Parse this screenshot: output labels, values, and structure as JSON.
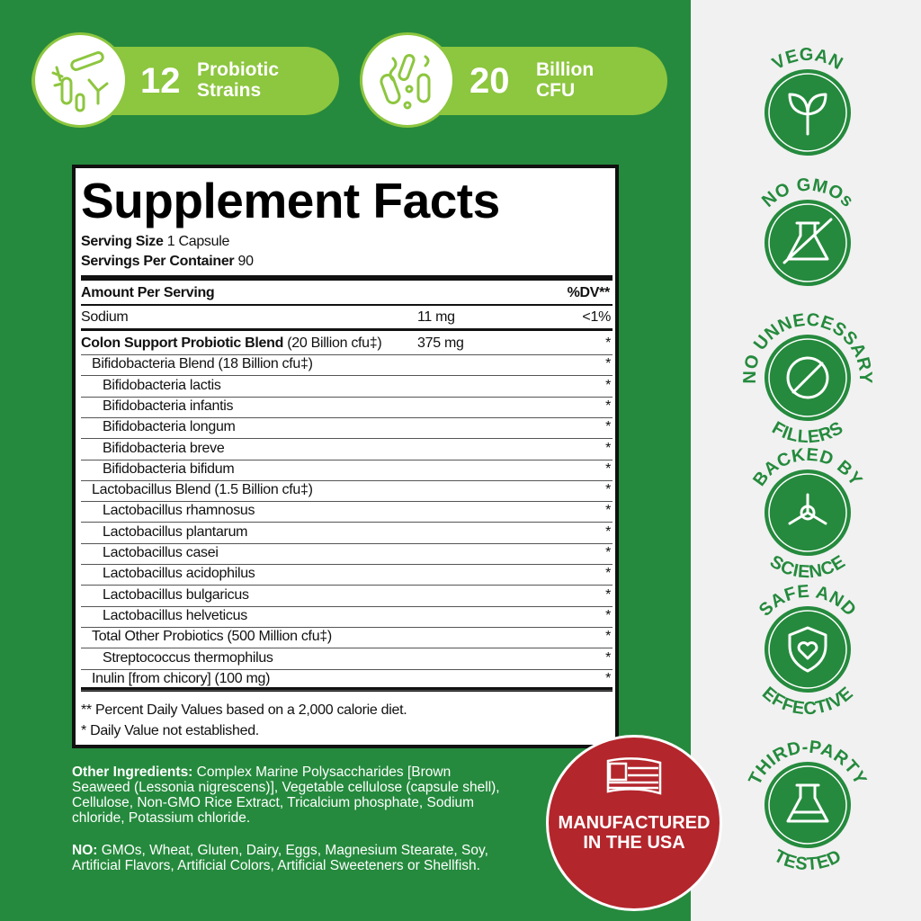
{
  "badges_top": [
    {
      "number": "12",
      "label": "Probiotic Strains"
    },
    {
      "number": "20",
      "label": "Billion CFU"
    }
  ],
  "facts": {
    "title": "Supplement Facts",
    "serving_size_label": "Serving Size",
    "serving_size": "1 Capsule",
    "servings_label": "Servings Per Container",
    "servings": "90",
    "amount_header": "Amount Per Serving",
    "dv_header": "%DV**",
    "rows": [
      {
        "name": "Sodium",
        "amount": "11 mg",
        "dv": "<1%"
      },
      {
        "name": "Colon Support Probiotic Blend",
        "detail": "(20 Billion cfu‡)",
        "amount": "375 mg",
        "dv": "*",
        "items": [
          {
            "name": "Bifidobacteria Blend (18 Billion cfu‡)",
            "dv": "*",
            "items": [
              {
                "name": "Bifidobacteria lactis",
                "dv": "*"
              },
              {
                "name": "Bifidobacteria infantis",
                "dv": "*"
              },
              {
                "name": "Bifidobacteria longum",
                "dv": "*"
              },
              {
                "name": "Bifidobacteria breve",
                "dv": "*"
              },
              {
                "name": "Bifidobacteria bifidum",
                "dv": "*"
              }
            ]
          },
          {
            "name": "Lactobacillus Blend (1.5 Billion cfu‡)",
            "dv": "*",
            "items": [
              {
                "name": "Lactobacillus rhamnosus",
                "dv": "*"
              },
              {
                "name": "Lactobacillus plantarum",
                "dv": "*"
              },
              {
                "name": "Lactobacillus casei",
                "dv": "*"
              },
              {
                "name": "Lactobacillus acidophilus",
                "dv": "*"
              },
              {
                "name": "Lactobacillus bulgaricus",
                "dv": "*"
              },
              {
                "name": "Lactobacillus helveticus",
                "dv": "*"
              }
            ]
          },
          {
            "name": "Total Other Probiotics (500 Million cfu‡)",
            "dv": "*",
            "items": [
              {
                "name": "Streptococcus thermophilus",
                "dv": "*"
              }
            ]
          },
          {
            "name": "Inulin [from chicory] (100 mg)",
            "dv": "*"
          }
        ]
      }
    ],
    "footnotes": [
      "** Percent Daily Values based on a 2,000 calorie diet.",
      "* Daily Value not established."
    ]
  },
  "other_ingredients": {
    "label": "Other Ingredients:",
    "text": "Complex Marine Polysaccharides [Brown Seaweed (Lessonia nigrescens)], Vegetable cellulose (capsule shell), Cellulose, Non-GMO Rice Extract, Tricalcium phosphate, Sodium chloride, Potassium chloride."
  },
  "no_list": {
    "label": "NO:",
    "text": "GMOs, Wheat, Gluten, Dairy, Eggs, Magnesium Stearate, Soy, Artificial Flavors, Artificial Colors, Artificial Sweeteners or Shellfish."
  },
  "usa_seal": "MANUFACTURED IN THE USA",
  "side_badges": [
    {
      "top": "VEGAN"
    },
    {
      "top": "NO GMOs"
    },
    {
      "top": "NO UNNECESSARY",
      "bottom": "FILLERS"
    },
    {
      "top": "BACKED BY",
      "bottom": "SCIENCE"
    },
    {
      "top": "SAFE AND",
      "bottom": "EFFECTIVE"
    },
    {
      "top": "THIRD-PARTY",
      "bottom": "TESTED"
    }
  ]
}
